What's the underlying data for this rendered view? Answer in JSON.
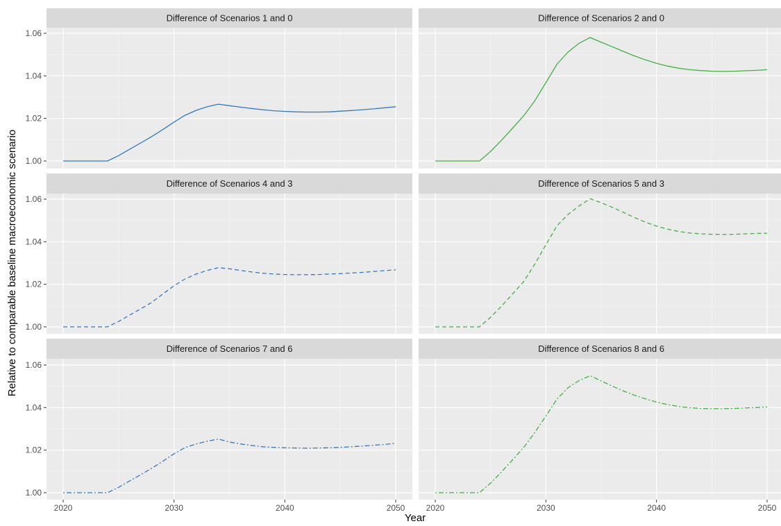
{
  "chart_data": {
    "type": "line",
    "xlabel": "Year",
    "ylabel": "Relative to comparable baseline macroeconomic scenario",
    "xlim": [
      2020,
      2050
    ],
    "ylim": [
      1.0,
      1.06
    ],
    "x_ticks": [
      2020,
      2030,
      2040,
      2050
    ],
    "y_ticks": [
      1.0,
      1.02,
      1.04,
      1.06
    ],
    "x_tick_labels": [
      "2020",
      "2030",
      "2040",
      "2050"
    ],
    "y_tick_labels": [
      "1.00",
      "1.02",
      "1.04",
      "1.06"
    ],
    "grid": true,
    "legend": "none",
    "colors": {
      "blue": "#3079c2",
      "green": "#41b040",
      "panel_bg": "#ebebeb",
      "strip_bg": "#d9d9d9"
    },
    "x": [
      2020,
      2021,
      2022,
      2023,
      2024,
      2025,
      2026,
      2027,
      2028,
      2029,
      2030,
      2031,
      2032,
      2033,
      2034,
      2035,
      2036,
      2037,
      2038,
      2039,
      2040,
      2041,
      2042,
      2043,
      2044,
      2045,
      2046,
      2047,
      2048,
      2049,
      2050
    ],
    "panels": [
      {
        "title": "Difference of Scenarios 1 and 0",
        "color": "blue",
        "linetype": "solid",
        "values": [
          1.0,
          1.0,
          1.0,
          1.0,
          1.0,
          1.0025,
          1.0055,
          1.0085,
          1.0115,
          1.0148,
          1.0183,
          1.0215,
          1.0238,
          1.0255,
          1.0267,
          1.026,
          1.0253,
          1.0247,
          1.0241,
          1.0236,
          1.0233,
          1.0231,
          1.023,
          1.023,
          1.0231,
          1.0234,
          1.0237,
          1.0241,
          1.0245,
          1.025,
          1.0255
        ]
      },
      {
        "title": "Difference of Scenarios 2 and 0",
        "color": "green",
        "linetype": "solid",
        "values": [
          1.0,
          1.0,
          1.0,
          1.0,
          1.0,
          1.0045,
          1.0098,
          1.0155,
          1.0213,
          1.0283,
          1.0368,
          1.0455,
          1.0512,
          1.0553,
          1.058,
          1.0558,
          1.0537,
          1.0515,
          1.0494,
          1.0475,
          1.0459,
          1.0446,
          1.0436,
          1.0429,
          1.0425,
          1.0422,
          1.0421,
          1.0422,
          1.0424,
          1.0426,
          1.0429
        ]
      },
      {
        "title": "Difference of Scenarios 4 and 3",
        "color": "blue",
        "linetype": "dashed",
        "values": [
          1.0,
          1.0,
          1.0,
          1.0,
          1.0,
          1.0025,
          1.0055,
          1.0085,
          1.0115,
          1.0155,
          1.0193,
          1.0225,
          1.0248,
          1.0265,
          1.0278,
          1.0273,
          1.0265,
          1.0258,
          1.0252,
          1.0248,
          1.0246,
          1.0245,
          1.0245,
          1.0246,
          1.0248,
          1.025,
          1.0253,
          1.0256,
          1.026,
          1.0264,
          1.0268
        ]
      },
      {
        "title": "Difference of Scenarios 5 and 3",
        "color": "green",
        "linetype": "dashed",
        "values": [
          1.0,
          1.0,
          1.0,
          1.0,
          1.0,
          1.0045,
          1.0098,
          1.0155,
          1.0213,
          1.0295,
          1.0385,
          1.0475,
          1.0528,
          1.0568,
          1.0602,
          1.0583,
          1.0562,
          1.0538,
          1.0514,
          1.0492,
          1.0473,
          1.0459,
          1.0448,
          1.0441,
          1.0437,
          1.0435,
          1.0434,
          1.0435,
          1.0437,
          1.0439,
          1.044
        ]
      },
      {
        "title": "Difference of Scenarios 7 and 6",
        "color": "blue",
        "linetype": "dotdash",
        "values": [
          1.0,
          1.0,
          1.0,
          1.0,
          1.0,
          1.0025,
          1.0055,
          1.0085,
          1.0115,
          1.0148,
          1.0183,
          1.0212,
          1.0229,
          1.0242,
          1.0252,
          1.0238,
          1.0229,
          1.0222,
          1.0216,
          1.0213,
          1.0211,
          1.021,
          1.0209,
          1.021,
          1.0211,
          1.0213,
          1.0216,
          1.0219,
          1.0223,
          1.0227,
          1.0232
        ]
      },
      {
        "title": "Difference of Scenarios 8 and 6",
        "color": "green",
        "linetype": "dotdash",
        "values": [
          1.0,
          1.0,
          1.0,
          1.0,
          1.0,
          1.0045,
          1.0098,
          1.0155,
          1.0213,
          1.0283,
          1.036,
          1.044,
          1.0493,
          1.0527,
          1.055,
          1.0525,
          1.0501,
          1.0478,
          1.0458,
          1.0441,
          1.0426,
          1.0414,
          1.0405,
          1.0399,
          1.0396,
          1.0395,
          1.0395,
          1.0396,
          1.0398,
          1.04,
          1.0403
        ]
      }
    ]
  }
}
